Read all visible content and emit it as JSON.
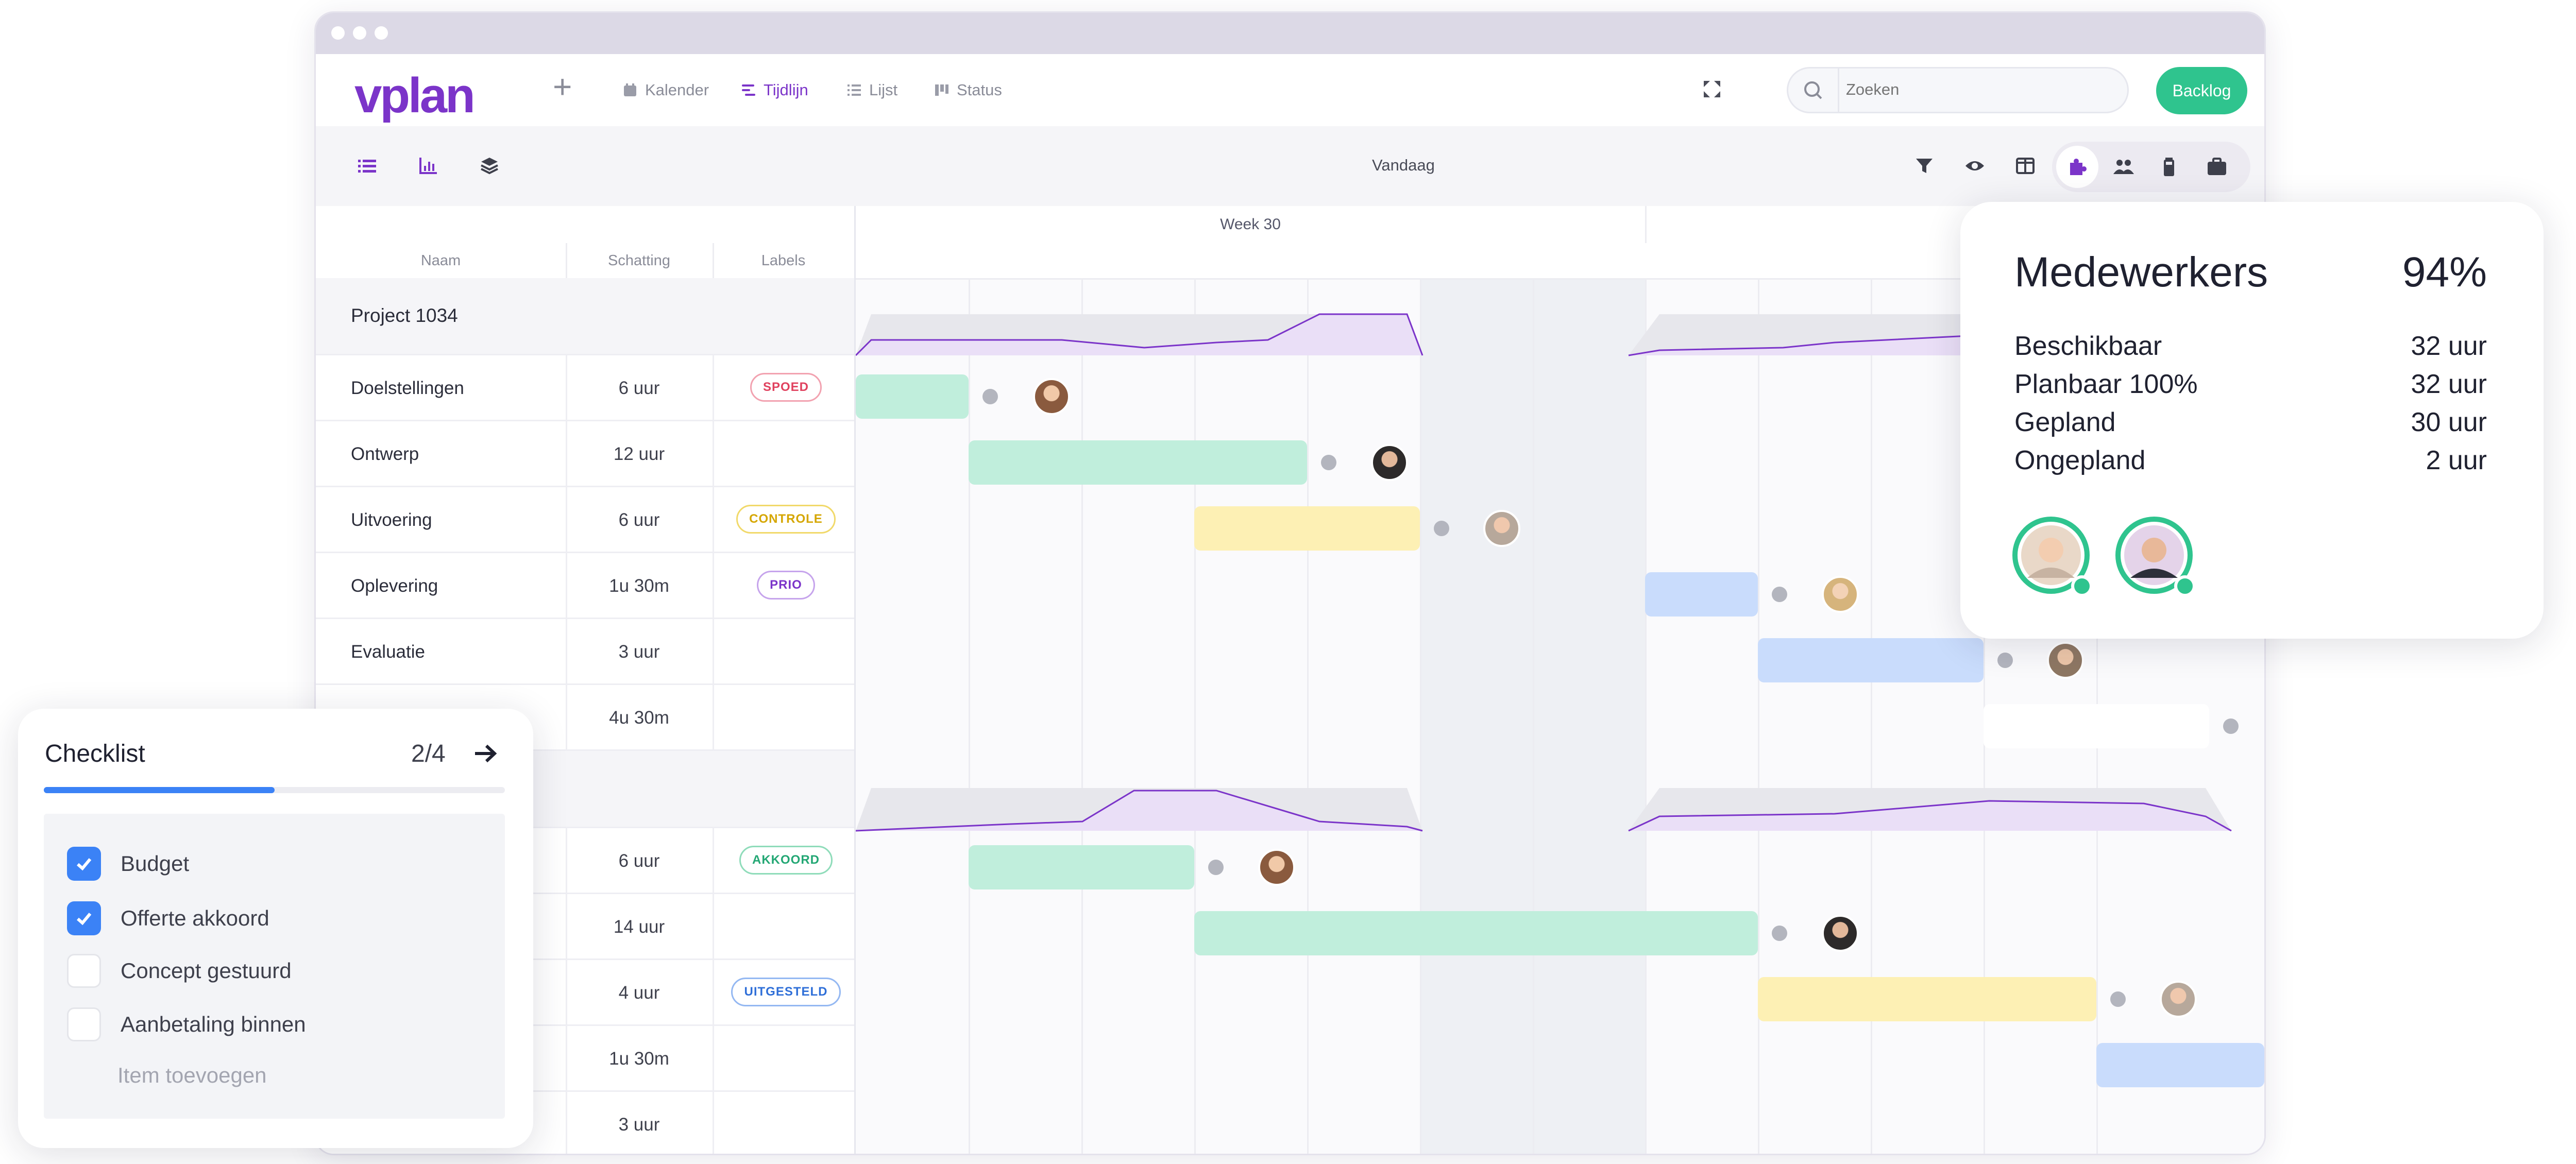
{
  "app": {
    "logo": "vplan",
    "nav": [
      {
        "label": "Kalender",
        "icon": "calendar-icon"
      },
      {
        "label": "Tijdlijn",
        "icon": "timeline-icon",
        "active": true
      },
      {
        "label": "Lijst",
        "icon": "list-icon"
      },
      {
        "label": "Status",
        "icon": "kanban-icon"
      }
    ],
    "search_placeholder": "Zoeken",
    "backlog_label": "Backlog",
    "brand_color": "#7b34c9",
    "accent_color": "#2fc48e"
  },
  "toolbar": {
    "today_label": "Vandaag",
    "left_icons": [
      "list-view-icon",
      "chart-icon",
      "layers-icon"
    ],
    "right_icons": [
      "filter-icon",
      "eye-icon",
      "columns-icon"
    ],
    "group_icons": [
      "puzzle-icon",
      "users-icon",
      "battery-icon",
      "briefcase-icon"
    ]
  },
  "timeline": {
    "week_label": "Week 30"
  },
  "table": {
    "headers": {
      "name": "Naam",
      "estimate": "Schatting",
      "labels": "Labels"
    },
    "project1": {
      "name": "Project 1034",
      "rows": [
        {
          "name": "Doelstellingen",
          "estimate": "6 uur",
          "label": "SPOED"
        },
        {
          "name": "Ontwerp",
          "estimate": "12 uur",
          "label": ""
        },
        {
          "name": "Uitvoering",
          "estimate": "6 uur",
          "label": "CONTROLE"
        },
        {
          "name": "Oplevering",
          "estimate": "1u 30m",
          "label": "PRIO"
        },
        {
          "name": "Evaluatie",
          "estimate": "3 uur",
          "label": ""
        },
        {
          "name": "",
          "estimate": "4u 30m",
          "label": ""
        }
      ]
    },
    "project2": {
      "rows": [
        {
          "estimate": "6 uur",
          "label": "AKKOORD"
        },
        {
          "estimate": "14 uur",
          "label": ""
        },
        {
          "estimate": "4 uur",
          "label": "UITGESTELD"
        },
        {
          "estimate": "1u 30m",
          "label": ""
        },
        {
          "estimate": "3 uur",
          "label": ""
        }
      ]
    }
  },
  "medewerkers": {
    "title": "Medewerkers",
    "percent": "94%",
    "stats": [
      {
        "label": "Beschikbaar",
        "value": "32 uur"
      },
      {
        "label": "Planbaar 100%",
        "value": "32 uur"
      },
      {
        "label": "Gepland",
        "value": "30 uur"
      },
      {
        "label": "Ongepland",
        "value": "2 uur"
      }
    ]
  },
  "checklist": {
    "title": "Checklist",
    "count": "2/4",
    "progress": 0.5,
    "items": [
      {
        "label": "Budget",
        "checked": true
      },
      {
        "label": "Offerte akkoord",
        "checked": true
      },
      {
        "label": "Concept gestuurd",
        "checked": false
      },
      {
        "label": "Aanbetaling binnen",
        "checked": false
      }
    ],
    "add_item": "Item toevoegen"
  }
}
